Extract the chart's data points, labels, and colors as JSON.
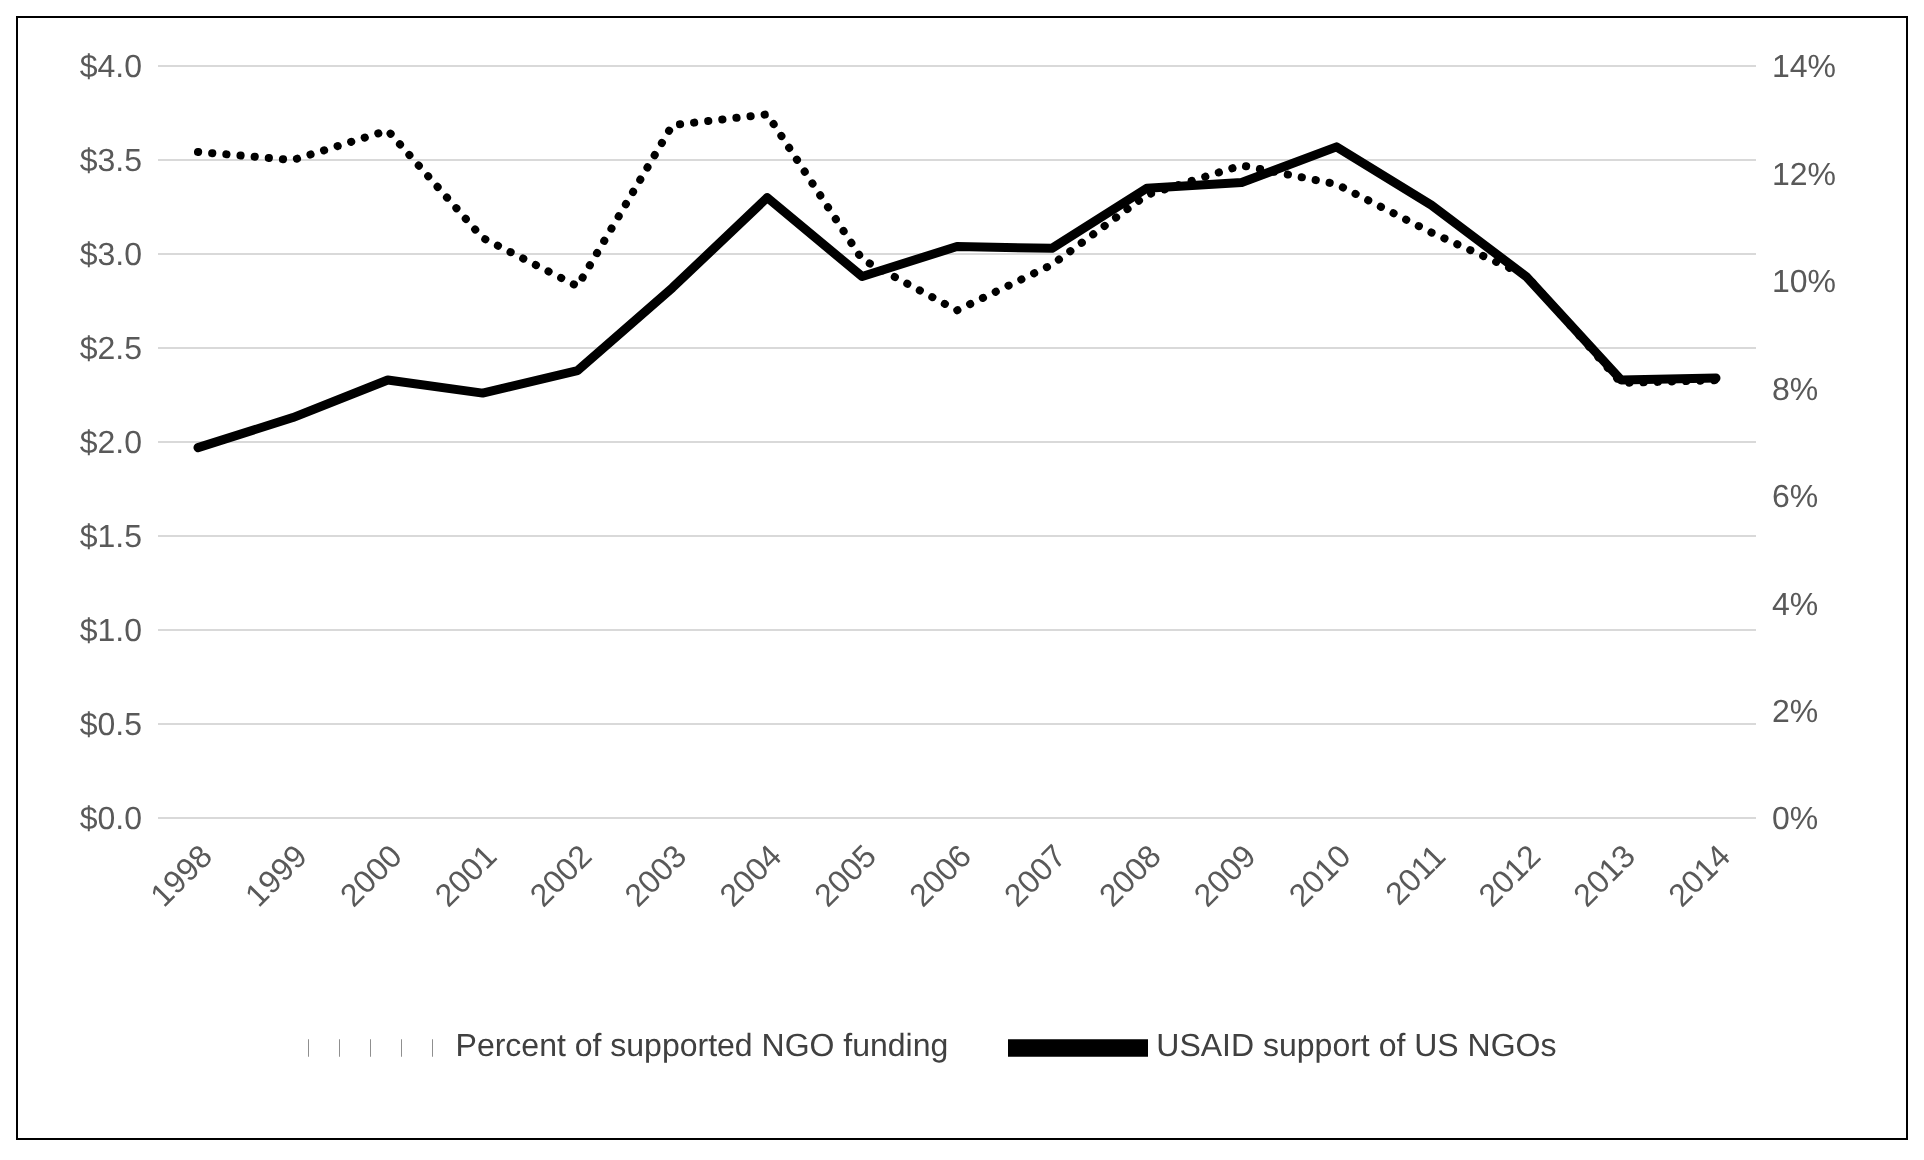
{
  "chart_data": {
    "type": "line",
    "categories": [
      "1998",
      "1999",
      "2000",
      "2001",
      "2002",
      "2003",
      "2004",
      "2005",
      "2006",
      "2007",
      "2008",
      "2009",
      "2010",
      "2011",
      "2012",
      "2013",
      "2014"
    ],
    "series": [
      {
        "name": "USAID support of US NGOs",
        "color": "#000000",
        "line_style": "solid",
        "values": [
          1.97,
          2.13,
          2.33,
          2.26,
          2.38,
          2.82,
          3.3,
          2.88,
          3.04,
          3.03,
          3.35,
          3.38,
          3.57,
          3.26,
          2.88,
          2.33,
          2.34
        ]
      },
      {
        "name": "Percent of supported NGO funding",
        "color": "#000000",
        "line_style": "dotted",
        "axis": "y2",
        "values": [
          12.4,
          12.25,
          12.8,
          10.8,
          9.9,
          12.9,
          13.1,
          10.4,
          9.45,
          10.3,
          11.6,
          12.15,
          11.8,
          10.9,
          10.1,
          8.1,
          8.15
        ]
      }
    ],
    "ylim": [
      0,
      4
    ],
    "yticks": [
      {
        "value": 0,
        "label": "$0.0"
      },
      {
        "value": 0.5,
        "label": "$0.5"
      },
      {
        "value": 1,
        "label": "$1.0"
      },
      {
        "value": 1.5,
        "label": "$1.5"
      },
      {
        "value": 2,
        "label": "$2.0"
      },
      {
        "value": 2.5,
        "label": "$2.5"
      },
      {
        "value": 3,
        "label": "$3.0"
      },
      {
        "value": 3.5,
        "label": "$3.5"
      },
      {
        "value": 4,
        "label": "$4.0"
      }
    ],
    "y2lim": [
      0,
      14
    ],
    "y2ticks": [
      {
        "value": 0,
        "label": "0%"
      },
      {
        "value": 2,
        "label": "2%"
      },
      {
        "value": 4,
        "label": "4%"
      },
      {
        "value": 6,
        "label": "6%"
      },
      {
        "value": 8,
        "label": "8%"
      },
      {
        "value": 10,
        "label": "10%"
      },
      {
        "value": 12,
        "label": "12%"
      },
      {
        "value": 14,
        "label": "14%"
      }
    ],
    "grid": "y",
    "legend": "bottom",
    "marker": "none"
  }
}
